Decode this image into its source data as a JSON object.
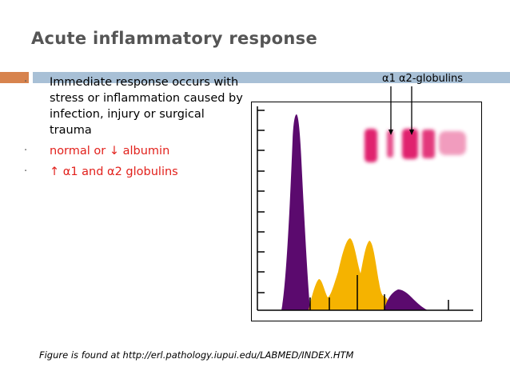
{
  "slide": {
    "title": "Acute inflammatory response",
    "bullets": [
      {
        "text": "Immediate response occurs with stress or inflammation caused by infection, injury or surgical trauma",
        "color": "#000000"
      },
      {
        "text": "normal or ↓ albumin",
        "color": "#e2211c"
      },
      {
        "text": "↑ α1 and α2 globulins",
        "color": "#e2211c"
      }
    ],
    "bullet_marker": "·",
    "figure": {
      "globulin_label": "α1  α2-globulins",
      "colors": {
        "albumin_peak": "#5b0a6e",
        "globulin_peaks": "#f5b300",
        "gel_bands": "#e0236e"
      }
    },
    "caption": "Figure is found at http://erl.pathology.iupui.edu/LABMED/INDEX.HTM"
  }
}
